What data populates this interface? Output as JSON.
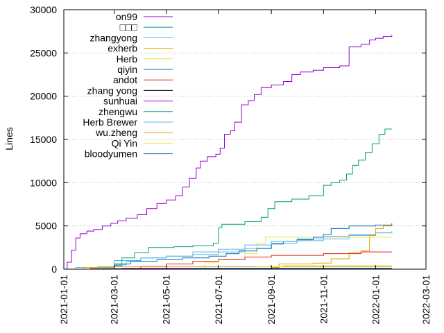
{
  "chart_data": {
    "type": "line",
    "ylabel": "Lines",
    "xlabel": "",
    "ylim": [
      0,
      30000
    ],
    "xlim": [
      "2021-01-01",
      "2022-03-01"
    ],
    "y_ticks": [
      0,
      5000,
      10000,
      15000,
      20000,
      25000,
      30000
    ],
    "x_ticks": [
      "2021-01-01",
      "2021-03-01",
      "2021-05-01",
      "2021-07-01",
      "2021-09-01",
      "2021-11-01",
      "2022-01-01",
      "2022-03-01"
    ],
    "grid": "horizontal-dotted",
    "legend_position": "top-left",
    "step": true,
    "series": [
      {
        "name": "on99",
        "color": "#9400d3",
        "points": [
          [
            "2021-01-01",
            0
          ],
          [
            "2021-01-05",
            800
          ],
          [
            "2021-01-10",
            2200
          ],
          [
            "2021-01-15",
            3600
          ],
          [
            "2021-01-20",
            4100
          ],
          [
            "2021-01-28",
            4400
          ],
          [
            "2021-02-05",
            4600
          ],
          [
            "2021-02-15",
            5000
          ],
          [
            "2021-02-25",
            5300
          ],
          [
            "2021-03-05",
            5600
          ],
          [
            "2021-03-15",
            5900
          ],
          [
            "2021-03-28",
            6300
          ],
          [
            "2021-04-08",
            7000
          ],
          [
            "2021-04-20",
            7600
          ],
          [
            "2021-05-01",
            8000
          ],
          [
            "2021-05-12",
            8500
          ],
          [
            "2021-05-20",
            9500
          ],
          [
            "2021-05-28",
            10500
          ],
          [
            "2021-06-05",
            11700
          ],
          [
            "2021-06-10",
            12500
          ],
          [
            "2021-06-18",
            13000
          ],
          [
            "2021-06-28",
            13300
          ],
          [
            "2021-07-03",
            14000
          ],
          [
            "2021-07-08",
            15600
          ],
          [
            "2021-07-15",
            16000
          ],
          [
            "2021-07-20",
            17000
          ],
          [
            "2021-07-28",
            19000
          ],
          [
            "2021-08-05",
            19500
          ],
          [
            "2021-08-12",
            20200
          ],
          [
            "2021-08-20",
            21000
          ],
          [
            "2021-09-01",
            21300
          ],
          [
            "2021-09-15",
            21700
          ],
          [
            "2021-09-25",
            22500
          ],
          [
            "2021-10-05",
            22800
          ],
          [
            "2021-10-20",
            23000
          ],
          [
            "2021-11-01",
            23300
          ],
          [
            "2021-11-20",
            23500
          ],
          [
            "2021-12-01",
            25700
          ],
          [
            "2021-12-15",
            26000
          ],
          [
            "2021-12-25",
            26500
          ],
          [
            "2022-01-01",
            26700
          ],
          [
            "2022-01-10",
            26900
          ],
          [
            "2022-01-20",
            27100
          ]
        ]
      },
      {
        "name": "□□□",
        "color": "#009e73",
        "points": [
          [
            "2021-01-01",
            0
          ],
          [
            "2022-01-20",
            0
          ]
        ]
      },
      {
        "name": "zhangyong",
        "color": "#56b4e9",
        "points": [
          [
            "2021-01-01",
            0
          ],
          [
            "2021-01-15",
            200
          ],
          [
            "2021-02-10",
            300
          ],
          [
            "2021-03-01",
            500
          ],
          [
            "2021-03-15",
            900
          ],
          [
            "2021-04-01",
            1300
          ],
          [
            "2021-05-01",
            1500
          ],
          [
            "2021-06-01",
            1700
          ],
          [
            "2021-07-01",
            2000
          ],
          [
            "2021-08-01",
            2400
          ],
          [
            "2021-09-01",
            3000
          ],
          [
            "2021-10-01",
            3300
          ],
          [
            "2021-11-01",
            3500
          ],
          [
            "2021-12-01",
            3900
          ],
          [
            "2022-01-01",
            4200
          ],
          [
            "2022-01-20",
            4300
          ]
        ]
      },
      {
        "name": "exherb",
        "color": "#e69f00",
        "points": [
          [
            "2021-01-01",
            0
          ],
          [
            "2021-09-01",
            200
          ],
          [
            "2021-09-10",
            600
          ],
          [
            "2021-10-20",
            700
          ],
          [
            "2021-11-10",
            1200
          ],
          [
            "2021-12-01",
            1900
          ],
          [
            "2021-12-15",
            2100
          ],
          [
            "2021-12-25",
            3900
          ],
          [
            "2022-01-01",
            4700
          ],
          [
            "2022-01-10",
            5000
          ],
          [
            "2022-01-20",
            5200
          ]
        ]
      },
      {
        "name": "Herb",
        "color": "#f0e442",
        "points": [
          [
            "2021-01-01",
            0
          ],
          [
            "2021-06-01",
            100
          ],
          [
            "2021-06-15",
            800
          ],
          [
            "2021-07-01",
            1100
          ],
          [
            "2021-08-01",
            1800
          ],
          [
            "2021-08-15",
            3000
          ],
          [
            "2021-08-25",
            3700
          ],
          [
            "2022-01-20",
            3700
          ]
        ]
      },
      {
        "name": "qiyin",
        "color": "#0072b2",
        "points": [
          [
            "2021-01-01",
            0
          ],
          [
            "2021-03-01",
            600
          ],
          [
            "2021-03-20",
            900
          ],
          [
            "2021-04-20",
            1100
          ],
          [
            "2021-05-20",
            1300
          ],
          [
            "2021-06-20",
            1500
          ],
          [
            "2021-07-10",
            1800
          ],
          [
            "2021-07-25",
            2100
          ],
          [
            "2021-08-15",
            2400
          ],
          [
            "2021-09-01",
            2900
          ],
          [
            "2021-09-15",
            3200
          ],
          [
            "2021-10-01",
            3400
          ],
          [
            "2021-10-20",
            3700
          ],
          [
            "2021-11-01",
            4000
          ],
          [
            "2021-11-10",
            4700
          ],
          [
            "2021-12-01",
            5000
          ],
          [
            "2022-01-01",
            5100
          ],
          [
            "2022-01-20",
            5300
          ]
        ]
      },
      {
        "name": "andot",
        "color": "#e51e10",
        "points": [
          [
            "2021-01-01",
            0
          ],
          [
            "2021-04-01",
            300
          ],
          [
            "2021-05-01",
            600
          ],
          [
            "2021-06-01",
            900
          ],
          [
            "2021-07-01",
            1100
          ],
          [
            "2021-08-01",
            1400
          ],
          [
            "2021-09-01",
            1600
          ],
          [
            "2021-11-01",
            1800
          ],
          [
            "2021-12-15",
            2000
          ],
          [
            "2022-01-20",
            2000
          ]
        ]
      },
      {
        "name": "zhang yong",
        "color": "#000000",
        "points": [
          [
            "2021-01-01",
            0
          ],
          [
            "2021-02-01",
            50
          ],
          [
            "2022-01-20",
            50
          ]
        ]
      },
      {
        "name": "sunhuai",
        "color": "#9400d3",
        "points": [
          [
            "2021-01-01",
            0
          ],
          [
            "2021-03-10",
            100
          ],
          [
            "2022-01-20",
            100
          ]
        ]
      },
      {
        "name": "zhengwu",
        "color": "#009e73",
        "points": [
          [
            "2021-01-01",
            0
          ],
          [
            "2021-02-20",
            200
          ],
          [
            "2021-03-01",
            400
          ],
          [
            "2021-03-10",
            1300
          ],
          [
            "2021-03-25",
            1900
          ],
          [
            "2021-04-10",
            2500
          ],
          [
            "2021-05-10",
            2600
          ],
          [
            "2021-06-01",
            2700
          ],
          [
            "2021-06-25",
            3000
          ],
          [
            "2021-07-01",
            4800
          ],
          [
            "2021-07-05",
            5200
          ],
          [
            "2021-08-01",
            5500
          ],
          [
            "2021-08-20",
            6000
          ],
          [
            "2021-08-28",
            7000
          ],
          [
            "2021-09-05",
            7800
          ],
          [
            "2021-09-25",
            8100
          ],
          [
            "2021-10-15",
            8500
          ],
          [
            "2021-11-01",
            9700
          ],
          [
            "2021-11-10",
            10000
          ],
          [
            "2021-11-20",
            10300
          ],
          [
            "2021-11-28",
            11000
          ],
          [
            "2021-12-05",
            12000
          ],
          [
            "2021-12-12",
            12600
          ],
          [
            "2021-12-20",
            13500
          ],
          [
            "2021-12-28",
            14500
          ],
          [
            "2022-01-05",
            15600
          ],
          [
            "2022-01-12",
            16200
          ],
          [
            "2022-01-20",
            16200
          ]
        ]
      },
      {
        "name": "Herb Brewer",
        "color": "#56b4e9",
        "points": [
          [
            "2021-01-01",
            0
          ],
          [
            "2021-03-01",
            1000
          ],
          [
            "2021-04-01",
            1300
          ],
          [
            "2021-05-01",
            1500
          ],
          [
            "2021-06-01",
            2000
          ],
          [
            "2021-07-01",
            2300
          ],
          [
            "2021-08-01",
            2800
          ],
          [
            "2021-09-01",
            3200
          ],
          [
            "2021-10-01",
            3500
          ],
          [
            "2021-11-01",
            3800
          ],
          [
            "2021-12-01",
            4000
          ],
          [
            "2022-01-01",
            4200
          ],
          [
            "2022-01-20",
            4400
          ]
        ]
      },
      {
        "name": "wu.zheng",
        "color": "#e69f00",
        "points": [
          [
            "2021-01-01",
            0
          ],
          [
            "2021-01-25",
            200
          ],
          [
            "2021-03-01",
            300
          ],
          [
            "2022-01-20",
            300
          ]
        ]
      },
      {
        "name": "Qi Yin",
        "color": "#f0e442",
        "points": [
          [
            "2021-01-01",
            0
          ],
          [
            "2021-08-15",
            300
          ],
          [
            "2021-09-15",
            400
          ],
          [
            "2022-01-20",
            400
          ]
        ]
      },
      {
        "name": "bloodyumen",
        "color": "#0072b2",
        "points": [
          [
            "2021-01-01",
            0
          ],
          [
            "2021-06-01",
            100
          ],
          [
            "2022-01-20",
            100
          ]
        ]
      }
    ]
  }
}
